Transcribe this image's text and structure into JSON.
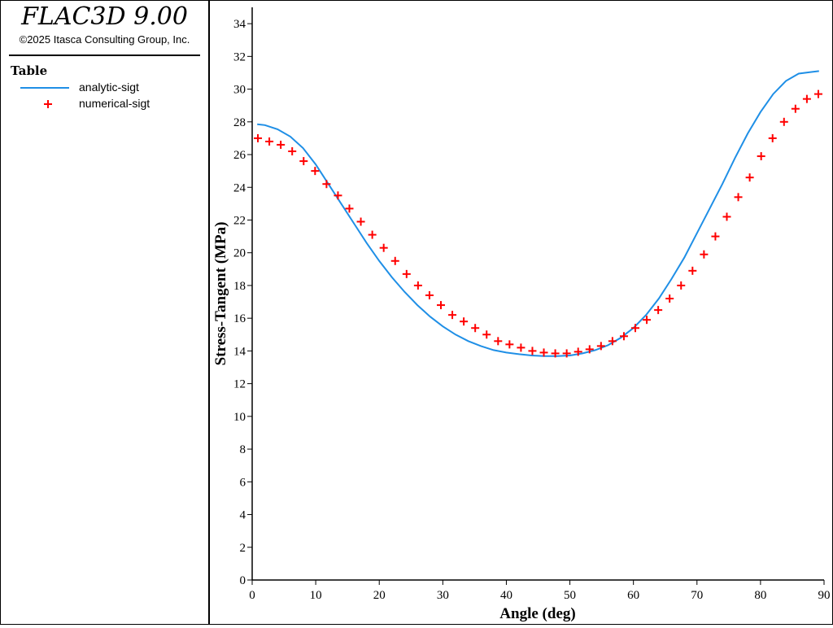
{
  "app": {
    "title": "FLAC3D 9.00",
    "copyright": "©2025 Itasca Consulting Group, Inc."
  },
  "legend": {
    "title": "Table",
    "items": [
      {
        "label": "analytic-sigt",
        "style": "line",
        "color": "#1f8fe6"
      },
      {
        "label": "numerical-sigt",
        "style": "plus",
        "color": "#ff0000"
      }
    ]
  },
  "chart_data": {
    "type": "line",
    "title": "",
    "xlabel": "Angle (deg)",
    "ylabel": "Stress-Tangent (MPa)",
    "xlim": [
      0,
      90
    ],
    "ylim": [
      0,
      35
    ],
    "xticks": [
      0,
      10,
      20,
      30,
      40,
      50,
      60,
      70,
      80,
      90
    ],
    "yticks": [
      0,
      2,
      4,
      6,
      8,
      10,
      12,
      14,
      16,
      18,
      20,
      22,
      24,
      26,
      28,
      30,
      32,
      34
    ],
    "grid": false,
    "legend_position": "left-panel",
    "series": [
      {
        "name": "analytic-sigt",
        "style": "line",
        "color": "#1f8fe6",
        "x": [
          0.8,
          2,
          4,
          6,
          8,
          10,
          12,
          14,
          16,
          18,
          20,
          22,
          24,
          26,
          28,
          30,
          32,
          34,
          36,
          38,
          40,
          42,
          44,
          46,
          48,
          50,
          52,
          54,
          56,
          58,
          60,
          62,
          64,
          66,
          68,
          70,
          72,
          74,
          76,
          78,
          80,
          82,
          84,
          86,
          88,
          89.2
        ],
        "y": [
          27.85,
          27.8,
          27.55,
          27.1,
          26.4,
          25.4,
          24.2,
          23.0,
          21.8,
          20.6,
          19.5,
          18.5,
          17.6,
          16.8,
          16.1,
          15.5,
          15.0,
          14.6,
          14.3,
          14.05,
          13.9,
          13.8,
          13.72,
          13.68,
          13.68,
          13.72,
          13.85,
          14.05,
          14.35,
          14.8,
          15.4,
          16.2,
          17.2,
          18.4,
          19.7,
          21.2,
          22.7,
          24.2,
          25.8,
          27.3,
          28.6,
          29.7,
          30.5,
          30.95,
          31.05,
          31.1
        ]
      },
      {
        "name": "numerical-sigt",
        "style": "plus",
        "color": "#ff0000",
        "x": [
          0.9,
          2.7,
          4.5,
          6.3,
          8.1,
          9.9,
          11.7,
          13.5,
          15.3,
          17.1,
          18.9,
          20.7,
          22.5,
          24.3,
          26.1,
          27.9,
          29.7,
          31.5,
          33.3,
          35.1,
          36.9,
          38.7,
          40.5,
          42.3,
          44.1,
          45.9,
          47.7,
          49.5,
          51.3,
          53.1,
          54.9,
          56.7,
          58.5,
          60.3,
          62.1,
          63.9,
          65.7,
          67.5,
          69.3,
          71.1,
          72.9,
          74.7,
          76.5,
          78.3,
          80.1,
          81.9,
          83.7,
          85.5,
          87.3,
          89.1
        ],
        "y": [
          27.0,
          26.8,
          26.6,
          26.2,
          25.6,
          25.0,
          24.2,
          23.5,
          22.7,
          21.9,
          21.1,
          20.3,
          19.5,
          18.7,
          18.0,
          17.4,
          16.8,
          16.2,
          15.8,
          15.4,
          15.0,
          14.6,
          14.4,
          14.2,
          14.0,
          13.9,
          13.85,
          13.85,
          13.95,
          14.1,
          14.3,
          14.6,
          14.9,
          15.4,
          15.9,
          16.5,
          17.2,
          18.0,
          18.9,
          19.9,
          21.0,
          22.2,
          23.4,
          24.6,
          25.9,
          27.0,
          28.0,
          28.8,
          29.4,
          29.7
        ]
      }
    ]
  }
}
